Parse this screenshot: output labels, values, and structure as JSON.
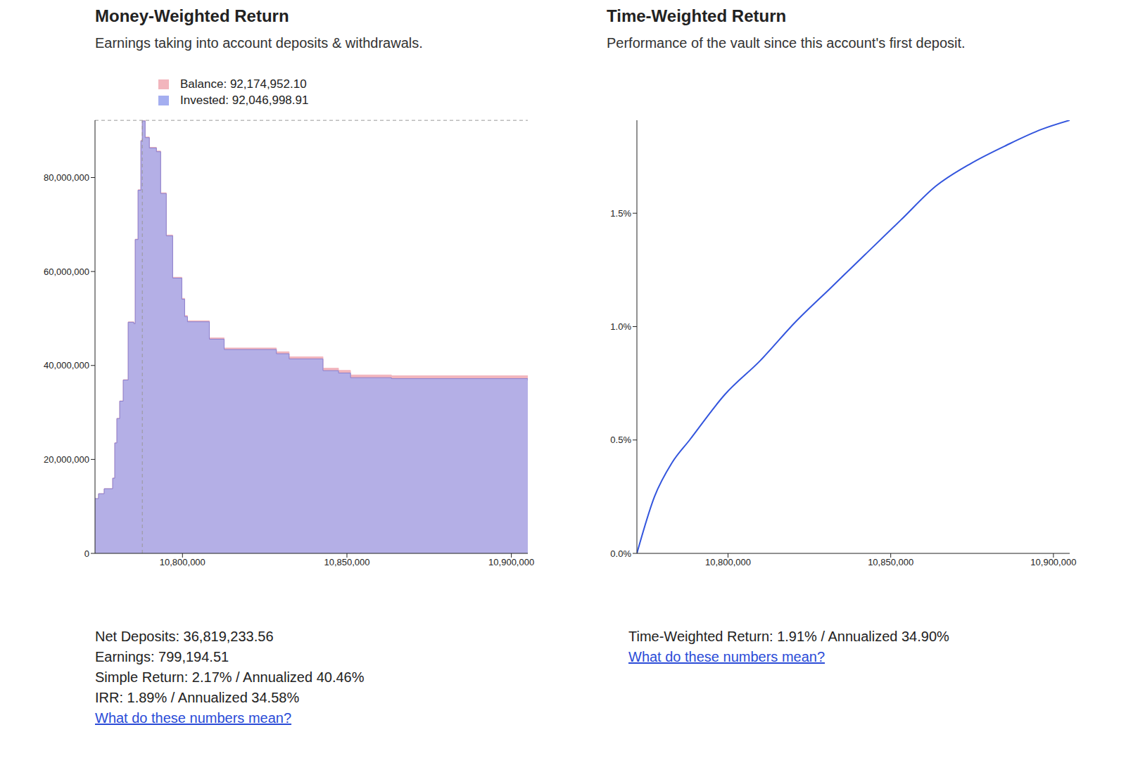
{
  "chart_data": [
    {
      "type": "area",
      "title": "Money-Weighted Return",
      "subtitle": "Earnings taking into account deposits & withdrawals.",
      "x": [
        10773400,
        10774470,
        10776190,
        10778770,
        10779410,
        10780050,
        10780910,
        10781980,
        10783490,
        10785200,
        10785630,
        10786490,
        10787350,
        10787780,
        10788640,
        10789920,
        10792070,
        10793360,
        10795070,
        10797010,
        10799800,
        10800650,
        10801510,
        10808170,
        10812670,
        10828550,
        10832420,
        10842720,
        10847440,
        10851090,
        10863530,
        10905000
      ],
      "series": [
        {
          "name": "Balance: 92,174,952.10",
          "color": "#f2b5bd",
          "line_style": "step",
          "values": [
            11660000,
            12710000,
            13780000,
            16030000,
            23540000,
            28750000,
            32460000,
            36970000,
            49280000,
            48990000,
            66900000,
            77410000,
            87920000,
            92174952.1,
            88630000,
            86440000,
            85650000,
            76760000,
            67770000,
            58780000,
            54300000,
            50610000,
            49520000,
            45880000,
            43720000,
            42920000,
            41850000,
            39420000,
            38950000,
            37980000,
            37820000,
            37620000
          ]
        },
        {
          "name": "Invested: 92,046,998.91",
          "color": "#a4aef0",
          "line_style": "step",
          "values": [
            11660000,
            12700000,
            13760000,
            16000000,
            23500000,
            28700000,
            32400000,
            36900000,
            49200000,
            48900000,
            66800000,
            77300000,
            87800000,
            92046998.91,
            88500000,
            86300000,
            85500000,
            76600000,
            67600000,
            58600000,
            54100000,
            50400000,
            49300000,
            45600000,
            43400000,
            42500000,
            41400000,
            38900000,
            38400000,
            37400000,
            37200000,
            36820000
          ]
        }
      ],
      "xlim": [
        10773400,
        10905000
      ],
      "xticks": [
        {
          "value": 10800000,
          "label": "10,800,000"
        },
        {
          "value": 10850000,
          "label": "10,850,000"
        },
        {
          "value": 10900000,
          "label": "10,900,000"
        }
      ],
      "ylim": [
        0,
        92200000
      ],
      "yticks": [
        0,
        {
          "value": 20000000,
          "label": "20,000,000"
        },
        {
          "value": 40000000,
          "label": "40,000,000"
        },
        {
          "value": 60000000,
          "label": "60,000,000"
        },
        {
          "value": 80000000,
          "label": "80,000,000"
        }
      ],
      "reference_lines": [
        {
          "axis": "x",
          "value": 10787780
        },
        {
          "axis": "y",
          "value": 92174952.1
        }
      ],
      "grid": false,
      "legend": "top",
      "annotations": [
        "Net Deposits: 36,819,233.56",
        "Earnings: 799,194.51",
        "Simple Return: 2.17% / Annualized 40.46%",
        "IRR: 1.89% / Annualized 34.58%"
      ],
      "link": "What do these numbers mean?"
    },
    {
      "type": "line",
      "title": "Time-Weighted Return",
      "subtitle": "Performance of the vault since this account's first deposit.",
      "x": [
        10772000,
        10777400,
        10782800,
        10788200,
        10799000,
        10809900,
        10820700,
        10831500,
        10842300,
        10853100,
        10863900,
        10874700,
        10885600,
        10896400,
        10905000
      ],
      "series": [
        {
          "name": "Time-Weighted Return",
          "color": "#3355dd",
          "values": [
            0,
            0.25,
            0.4,
            0.5,
            0.7,
            0.85,
            1.02,
            1.17,
            1.32,
            1.47,
            1.62,
            1.72,
            1.8,
            1.87,
            1.91
          ]
        }
      ],
      "xlim": [
        10772000,
        10905000
      ],
      "xticks": [
        {
          "value": 10800000,
          "label": "10,800,000"
        },
        {
          "value": 10850000,
          "label": "10,850,000"
        },
        {
          "value": 10900000,
          "label": "10,900,000"
        }
      ],
      "ylim": [
        0,
        1.91
      ],
      "yticks": [
        {
          "value": 0,
          "label": "0.0%"
        },
        {
          "value": 0.5,
          "label": "0.5%"
        },
        {
          "value": 1,
          "label": "1.0%"
        },
        {
          "value": 1.5,
          "label": "1.5%"
        }
      ],
      "grid": false,
      "annotations": [
        "Time-Weighted Return: 1.91% / Annualized 34.90%"
      ],
      "link": "What do these numbers mean?"
    }
  ]
}
